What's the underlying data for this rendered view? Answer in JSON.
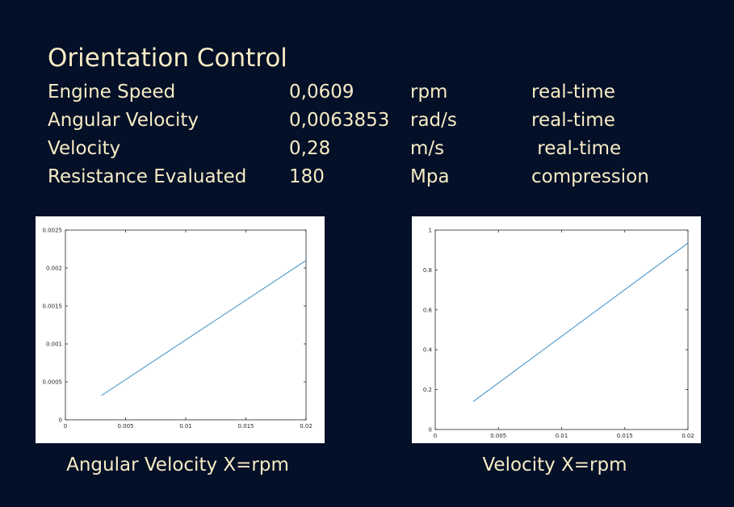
{
  "title": "Orientation Control",
  "parameters": [
    {
      "name": "Engine Speed",
      "value": "0,0609",
      "unit": "rpm",
      "mode": "real-time"
    },
    {
      "name": "Angular Velocity",
      "value": "0,0063853",
      "unit": "rad/s",
      "mode": "real-time"
    },
    {
      "name": "Velocity",
      "value": "0,28",
      "unit": "m/s",
      "mode": " real-time"
    },
    {
      "name": "Resistance Evaluated",
      "value": "180",
      "unit": "Mpa",
      "mode": "compression"
    }
  ],
  "captions": [
    "Angular Velocity X=rpm",
    "Velocity X=rpm"
  ],
  "colors": {
    "background": "#040f28",
    "text": "#f6ecc4",
    "line": "#3c8fc8"
  },
  "chart_data": [
    {
      "type": "line",
      "title": "",
      "xlabel": "",
      "ylabel": "",
      "xlim": [
        0,
        0.02
      ],
      "ylim": [
        0,
        0.0025
      ],
      "xticks": [
        0,
        0.005,
        0.01,
        0.015,
        0.02
      ],
      "xtick_labels": [
        "0",
        "0.005",
        "0.01",
        "0.015",
        "0.02"
      ],
      "yticks": [
        0,
        0.0005,
        0.001,
        0.0015,
        0.002,
        0.0025
      ],
      "ytick_labels": [
        "0",
        "0.0005",
        "0.001",
        "0.0015",
        "0.002",
        "0.0025"
      ],
      "grid": false,
      "series": [
        {
          "x": [
            0.003,
            0.02
          ],
          "y": [
            0.00032,
            0.0021
          ]
        }
      ]
    },
    {
      "type": "line",
      "title": "",
      "xlabel": "",
      "ylabel": "",
      "xlim": [
        0,
        0.02
      ],
      "ylim": [
        0,
        1
      ],
      "xticks": [
        0,
        0.005,
        0.01,
        0.015,
        0.02
      ],
      "xtick_labels": [
        "0",
        "0.005",
        "0.01",
        "0.015",
        "0.02"
      ],
      "yticks": [
        0,
        0.2,
        0.4,
        0.6,
        0.8,
        1
      ],
      "ytick_labels": [
        "0",
        "0.2",
        "0.4",
        "0.6",
        "0.8",
        "1"
      ],
      "grid": false,
      "series": [
        {
          "x": [
            0.003,
            0.02
          ],
          "y": [
            0.14,
            0.935
          ]
        }
      ]
    }
  ]
}
